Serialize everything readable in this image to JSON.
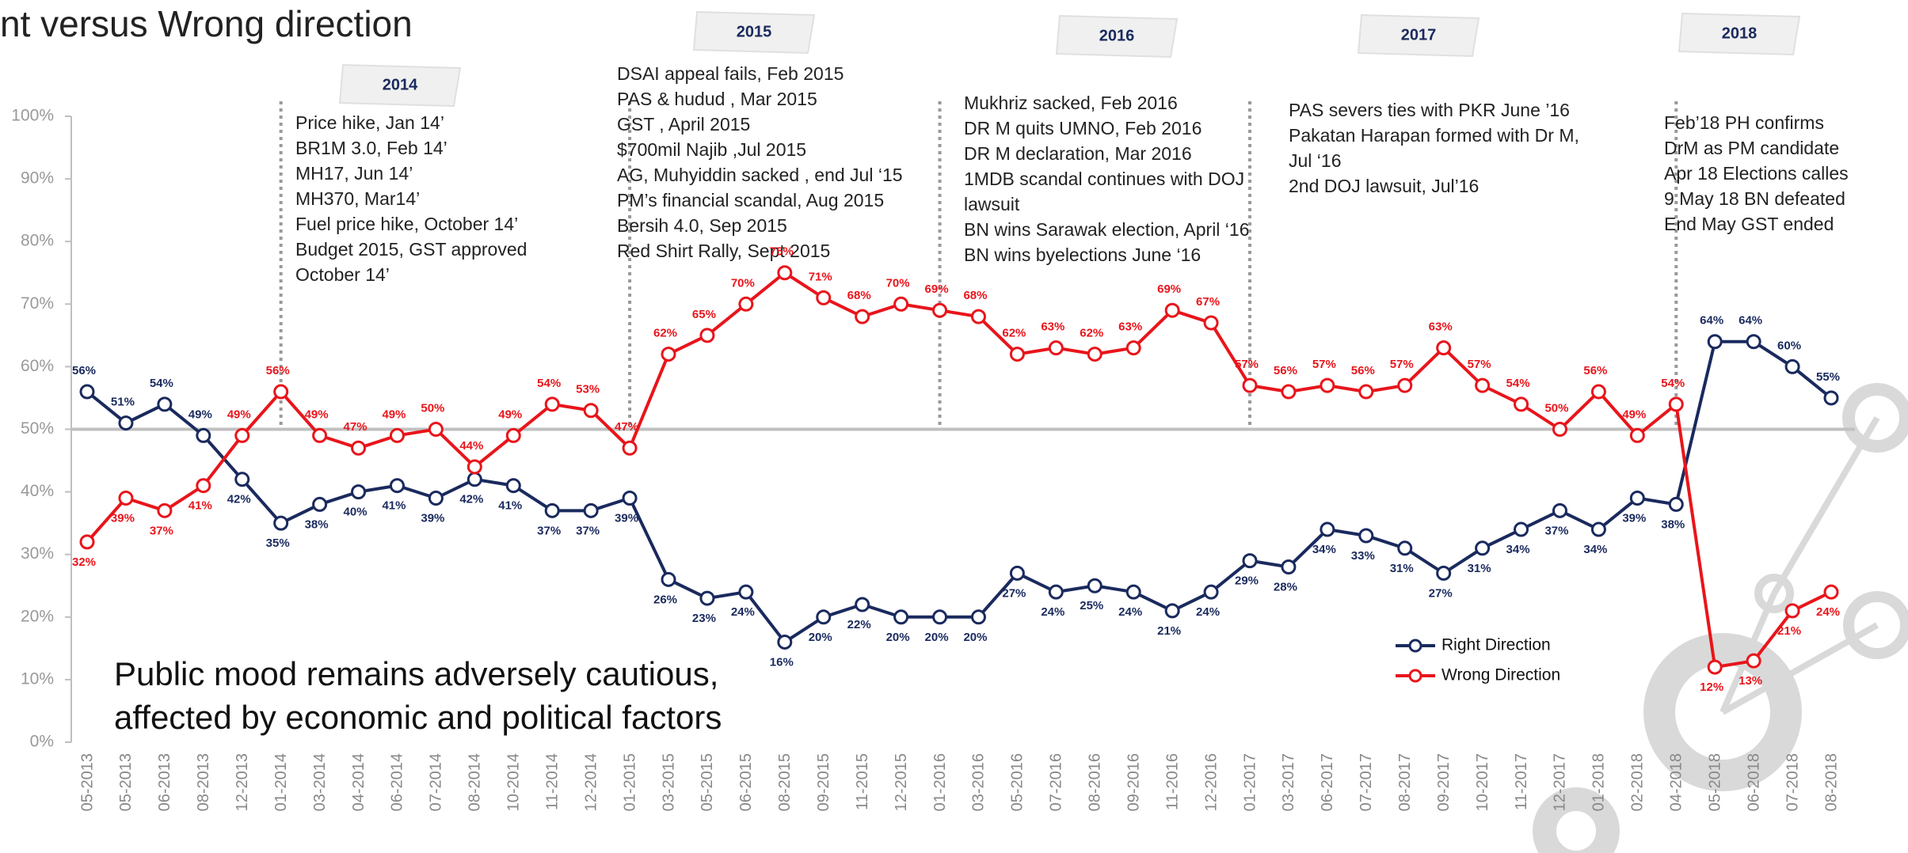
{
  "chart_data": {
    "type": "line",
    "title": "nt versus Wrong direction",
    "subtitle_lines": [
      "Public mood remains adversely cautious,",
      "affected by economic and political factors"
    ],
    "categories": [
      "05-2013",
      "05-2013",
      "06-2013",
      "08-2013",
      "12-2013",
      "01-2014",
      "03-2014",
      "04-2014",
      "06-2014",
      "07-2014",
      "08-2014",
      "10-2014",
      "11-2014",
      "12-2014",
      "01-2015",
      "03-2015",
      "05-2015",
      "06-2015",
      "08-2015",
      "09-2015",
      "11-2015",
      "12-2015",
      "01-2016",
      "03-2016",
      "05-2016",
      "07-2016",
      "08-2016",
      "09-2016",
      "11-2016",
      "12-2016",
      "01-2017",
      "03-2017",
      "06-2017",
      "07-2017",
      "08-2017",
      "09-2017",
      "10-2017",
      "11-2017",
      "12-2017",
      "01-2018",
      "02-2018",
      "04-2018",
      "05-2018",
      "06-2018",
      "07-2018",
      "08-2018"
    ],
    "series": [
      {
        "name": "Right Direction",
        "color": "#1a2a5e",
        "values": [
          56,
          51,
          54,
          49,
          42,
          35,
          38,
          40,
          41,
          39,
          42,
          41,
          37,
          37,
          39,
          26,
          23,
          24,
          16,
          20,
          22,
          20,
          20,
          20,
          27,
          24,
          25,
          24,
          21,
          24,
          29,
          28,
          34,
          33,
          31,
          27,
          31,
          34,
          37,
          34,
          39,
          38,
          64,
          64,
          60,
          55
        ],
        "value_labels": [
          "56%",
          "51%",
          "54%",
          "49%",
          "42%",
          "35%",
          "38%",
          "40%",
          "41%",
          "39%",
          "42%",
          "41%",
          "37%",
          "37%",
          "39%",
          "26%",
          "23%",
          "24%",
          "16%",
          "20%",
          "22%",
          "20%",
          "20%",
          "20%",
          "27%",
          "24%",
          "25%",
          "24%",
          "21%",
          "24%",
          "29%",
          "28%",
          "34%",
          "33%",
          "31%",
          "27%",
          "31%",
          "34%",
          "37%",
          "34%",
          "39%",
          "38%",
          "64%",
          "64%",
          "60%",
          "55%"
        ]
      },
      {
        "name": "Wrong Direction",
        "color": "#e8151b",
        "values": [
          32,
          39,
          37,
          41,
          49,
          56,
          49,
          47,
          49,
          50,
          44,
          49,
          54,
          53,
          47,
          62,
          65,
          70,
          75,
          71,
          68,
          70,
          69,
          68,
          62,
          63,
          62,
          63,
          69,
          67,
          57,
          56,
          57,
          56,
          57,
          63,
          57,
          54,
          50,
          56,
          49,
          54,
          12,
          13,
          21,
          24
        ],
        "value_labels": [
          "32%",
          "39%",
          "37%",
          "41%",
          "49%",
          "56%",
          "49%",
          "47%",
          "49%",
          "50%",
          "44%",
          "49%",
          "54%",
          "53%",
          "47%",
          "62%",
          "65%",
          "70%",
          "75%",
          "71%",
          "68%",
          "70%",
          "69%",
          "68%",
          "62%",
          "63%",
          "62%",
          "63%",
          "69%",
          "67%",
          "57%",
          "56%",
          "57%",
          "56%",
          "57%",
          "63%",
          "57%",
          "54%",
          "50%",
          "56%",
          "49%",
          "54%",
          "12%",
          "13%",
          "21%",
          "24%"
        ]
      }
    ],
    "ylim": [
      0,
      100
    ],
    "yticks": [
      {
        "value": 0,
        "label": "0%"
      },
      {
        "value": 10,
        "label": "10%"
      },
      {
        "value": 20,
        "label": "20%"
      },
      {
        "value": 30,
        "label": "30%"
      },
      {
        "value": 40,
        "label": "40%"
      },
      {
        "value": 50,
        "label": "50%"
      },
      {
        "value": 60,
        "label": "60%"
      },
      {
        "value": 70,
        "label": "70%"
      },
      {
        "value": 80,
        "label": "80%"
      },
      {
        "value": 90,
        "label": "90%"
      },
      {
        "value": 100,
        "label": "100%"
      }
    ],
    "grid": false,
    "reference_line": 50,
    "events": [
      {
        "year": "2014",
        "lines": [
          "Price hike, Jan 14’",
          "BR1M 3.0, Feb 14’",
          "MH17, Jun 14’",
          "MH370, Mar14’",
          "Fuel price hike, October 14’",
          "Budget 2015, GST approved",
          "October 14’"
        ]
      },
      {
        "year": "2015",
        "lines": [
          "DSAI appeal fails, Feb 2015",
          "PAS & hudud , Mar 2015",
          "GST , April 2015",
          "$700mil Najib ,Jul 2015",
          "AG, Muhyiddin sacked , end Jul ‘15",
          "PM’s financial scandal, Aug 2015",
          "Bersih 4.0, Sep 2015",
          "Red Shirt Rally, Sept 2015"
        ]
      },
      {
        "year": "2016",
        "lines": [
          "Mukhriz sacked, Feb 2016",
          "DR M quits UMNO, Feb 2016",
          "DR M declaration, Mar 2016",
          "1MDB scandal continues with DOJ",
          "lawsuit",
          "BN wins Sarawak election, April ‘16",
          "BN wins byelections June ‘16"
        ]
      },
      {
        "year": "2017",
        "lines": [
          "PAS severs ties with PKR June ’16",
          "Pakatan Harapan formed with Dr M,",
          "Jul ‘16",
          "2nd DOJ lawsuit, Jul’16"
        ]
      },
      {
        "year": "2018",
        "lines": [
          "Feb’18 PH confirms",
          "DrM as PM candidate",
          "Apr 18 Elections calles",
          "9 May 18 BN defeated",
          "End May GST ended"
        ]
      }
    ]
  }
}
